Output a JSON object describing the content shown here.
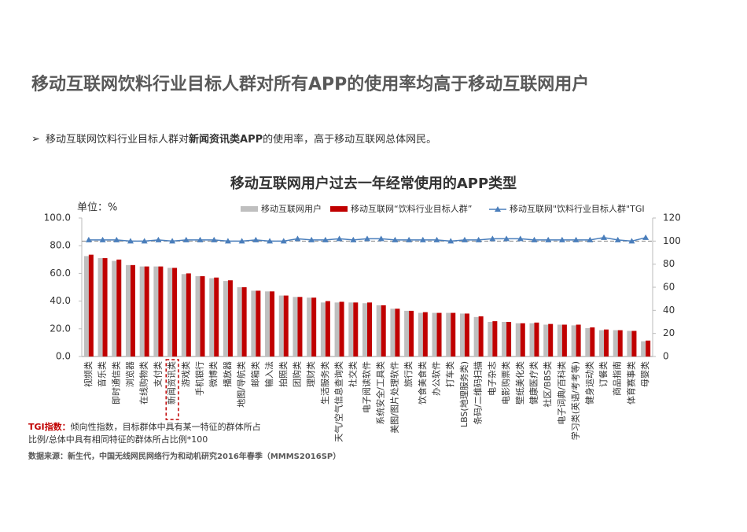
{
  "header": {
    "title": "移动互联网饮料行业目标人群对所有APP的使用率均高于移动互联网用户",
    "bullet": [
      "移动互联网饮料行业目标人群对",
      "新闻资讯类APP",
      "的使用率，高于移动互联网总体网民。"
    ]
  },
  "chart_data": {
    "type": "bar",
    "title": "移动互联网用户过去一年经常使用的APP类型",
    "y_label": "单位：%",
    "categories": [
      "视频类",
      "音乐类",
      "即时通信类",
      "浏览器",
      "在线购物类",
      "支付类",
      "新闻资讯类",
      "游戏类",
      "手机银行",
      "微博类",
      "播放器",
      "地图/导航类",
      "邮箱类",
      "输入法",
      "拍照类",
      "团购类",
      "理财类",
      "生活服务类",
      "天气/空气信息查询类",
      "社交类",
      "电子阅读软件",
      "系统安全/工具类",
      "美图/图片处理软件",
      "旅行类",
      "饮食美食类",
      "办公软件",
      "打车类",
      "LBS(地理服务类)",
      "条码/二维码扫描",
      "电子杂志",
      "电影购票类",
      "壁纸美化类",
      "健康医疗类",
      "社区/BBS类",
      "电子词典/百科类",
      "学习类(英语/考考等)",
      "健身运动类",
      "订餐类",
      "商品指南",
      "体育赛事类",
      "母婴类"
    ],
    "series": [
      {
        "name": "移动互联网用户",
        "color": "#bfbfbf",
        "values": [
          72.5,
          71,
          69,
          66,
          65,
          65,
          64,
          59.5,
          58,
          56.5,
          54.5,
          50,
          47.5,
          47,
          44,
          43,
          42.5,
          39,
          39,
          39,
          38.5,
          37,
          34.5,
          33,
          31.5,
          31.5,
          31.5,
          31,
          28.5,
          25,
          25,
          24,
          24,
          23,
          23,
          22.5,
          20.5,
          19,
          19,
          18.5,
          11
        ]
      },
      {
        "name": "移动互联网“饮料行业目标人群”",
        "color": "#c00000",
        "values": [
          73.5,
          71,
          70,
          66,
          65,
          65,
          64,
          60,
          58,
          57,
          55,
          50,
          47.5,
          47,
          44,
          43,
          42.5,
          40,
          39.5,
          39,
          39,
          37,
          34.5,
          33,
          32,
          31.5,
          31.5,
          31,
          29,
          25.5,
          25,
          24,
          24.5,
          23.5,
          23,
          23,
          21,
          19.5,
          19,
          18.5,
          11.5
        ]
      },
      {
        "name": "移动互联网\"饮料行业目标人群\"TGI",
        "color": "#4a7ebb",
        "type": "line",
        "axis": "y2",
        "values": [
          101,
          101,
          101,
          100,
          100,
          101,
          100,
          101,
          101,
          101,
          100,
          100,
          101,
          100,
          100,
          102,
          101,
          101,
          102,
          101,
          102,
          102,
          101,
          101,
          101,
          101,
          100,
          101,
          101,
          102,
          102,
          102,
          101,
          101,
          101,
          101,
          101,
          103,
          101,
          100,
          103
        ]
      }
    ],
    "ylim": [
      0,
      100
    ],
    "yticks": [
      {
        "value": 0,
        "label": "0.0"
      },
      {
        "value": 20,
        "label": "20.0"
      },
      {
        "value": 40,
        "label": "40.0"
      },
      {
        "value": 60,
        "label": "60.0"
      },
      {
        "value": 80,
        "label": "80.0"
      },
      {
        "value": 100,
        "label": "100.0"
      }
    ],
    "y2lim": [
      0,
      120
    ],
    "y2ticks": [
      0,
      20,
      40,
      60,
      80,
      100,
      120
    ],
    "reference_line": 100,
    "highlight": 6
  },
  "notes": {
    "label": "TGI指数：",
    "lines": [
      "倾向性指数，目标群体中具有某一特征的群体所占",
      "比例/总体中具有相同特征的群体所占比例*100"
    ],
    "source": "数据来源：新生代，中国无线网民网络行为和动机研究2016年春季（MMMS2016SP）"
  }
}
